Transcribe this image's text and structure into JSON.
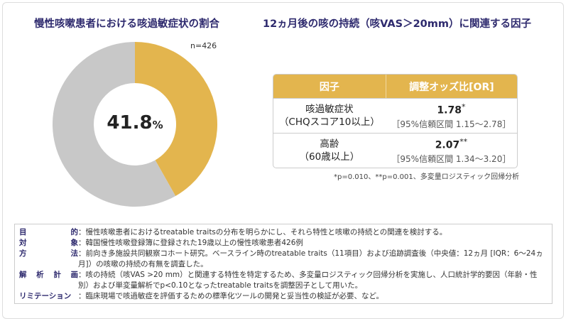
{
  "left_title": "慢性咳嗽患者における咳過敏症状の割合",
  "right_title": "12ヵ月後の咳の持続（咳VAS＞20mm）に関連する因子",
  "chart_data": {
    "type": "pie",
    "donut": true,
    "n_label": "n=426",
    "center_value": "41.8",
    "center_unit": "%",
    "values": [
      41.8,
      58.2
    ],
    "colors": [
      "#e3b54e",
      "#c8c8c8"
    ]
  },
  "table": {
    "headers": [
      "因子",
      "調整オッズ比[OR]"
    ],
    "rows": [
      {
        "factor1": "咳過敏症状",
        "factor2": "（CHQスコア10以上）",
        "or": "1.78",
        "sig": "*",
        "ci": "［95%信頼区間 1.15～2.78］"
      },
      {
        "factor1": "高齢",
        "factor2": "（60歳以上）",
        "or": "2.07",
        "sig": "**",
        "ci": "［95%信頼区間 1.34～3.20］"
      }
    ],
    "note": "*p=0.010、**p=0.001、多変量ロジスティック回帰分析"
  },
  "methods": [
    {
      "label": [
        "目",
        "的"
      ],
      "text": "：慢性咳嗽患者におけるtreatable traitsの分布を明らかにし、それら特性と咳嗽の持続との関連を検討する。"
    },
    {
      "label": [
        "対",
        "象"
      ],
      "text": "：韓国慢性咳嗽登録簿に登録された19歳以上の慢性咳嗽患者426例"
    },
    {
      "label": [
        "方",
        "法"
      ],
      "text": "：前向き多施設共同観察コホート研究。ベースライン時のtreatable traits（11項目）および追跡調査後（中央値：12ヵ月 [IQR：6～24ヵ月]）の咳嗽の持続の有無を調査した。"
    },
    {
      "label": [
        "解",
        "析",
        "計",
        "画"
      ],
      "text": "：咳の持続（咳VAS >20 mm）と関連する特性を特定するため、多変量ロジスティック回帰分析を実施し、人口統計学的要因（年齢・性別）および単変量解析でp<0.10となったtreatable traitsを調整因子として用いた。"
    },
    {
      "label": [
        "リミテーション"
      ],
      "text": "：臨床現場で咳過敏症を評価するための標準化ツールの開発と妥当性の検証が必要、など。"
    }
  ]
}
